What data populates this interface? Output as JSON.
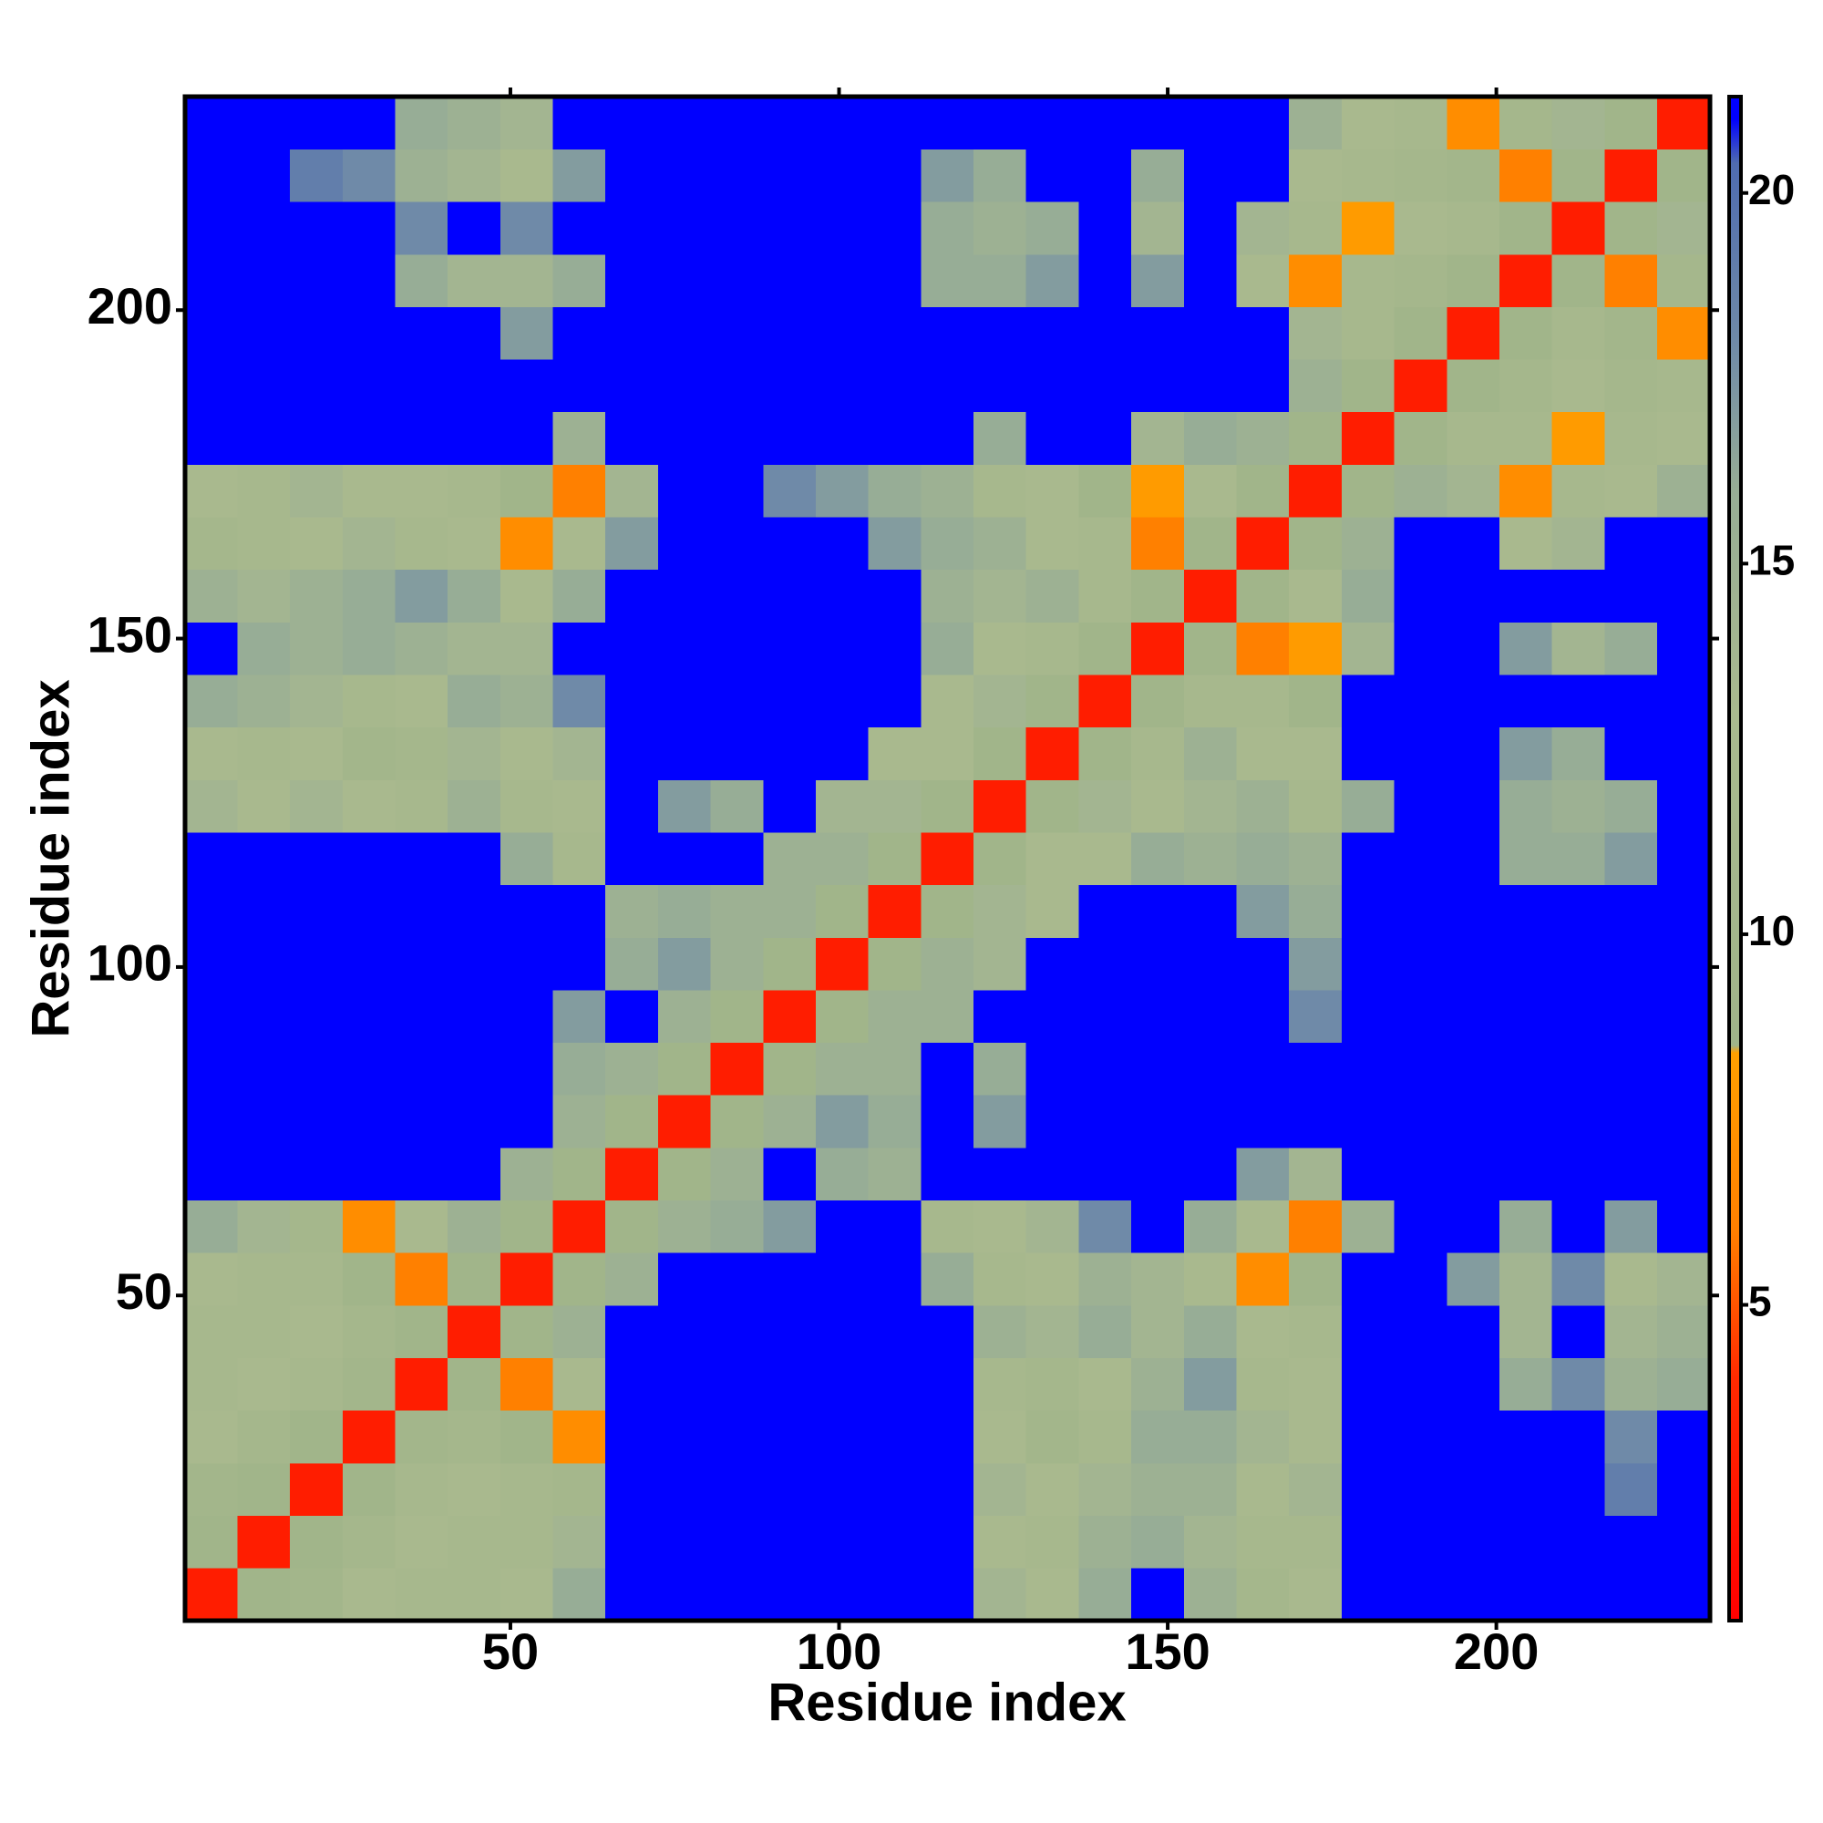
{
  "chart_data": {
    "type": "heatmap",
    "xlabel": "Residue index",
    "ylabel": "Residue index",
    "bins": [
      0.5,
      8.5,
      16.5,
      24.5,
      32.5,
      40.5,
      48.5,
      56.5,
      64.5,
      72.5,
      80.5,
      88.5,
      96.5,
      104.5,
      112.5,
      120.5,
      128.5,
      136.5,
      144.5,
      152.5,
      160.5,
      168.5,
      176.5,
      184.5,
      192.5,
      200.5,
      208.5,
      216.5,
      224.5,
      232.5
    ],
    "xlim": [
      0.5,
      232.5
    ],
    "ylim": [
      0.5,
      232.5
    ],
    "xticks": [
      50,
      100,
      150,
      200
    ],
    "yticks": [
      50,
      100,
      150,
      200
    ],
    "zlim": [
      0.74,
      21.3
    ],
    "zticks": [
      5,
      10,
      15,
      20
    ],
    "colorscale": [
      [
        0.74,
        "#ff0000"
      ],
      [
        4,
        "#ff2a00"
      ],
      [
        6,
        "#ff8000"
      ],
      [
        8.4,
        "#ffa000"
      ],
      [
        8.5,
        "#a0b48a"
      ],
      [
        13,
        "#a9b98e"
      ],
      [
        16,
        "#97ad96"
      ],
      [
        18,
        "#6f8aa8"
      ],
      [
        20.4,
        "#4f6cb0"
      ],
      [
        21,
        "#0000ff"
      ]
    ],
    "z": [
      [
        3,
        9,
        10,
        13,
        12,
        12,
        13,
        16,
        21,
        21,
        21,
        21,
        21,
        21,
        21,
        14,
        13,
        16,
        21,
        15,
        11,
        13,
        21,
        21,
        21,
        21,
        21,
        21,
        21
      ],
      [
        9,
        3,
        9,
        11,
        13,
        12,
        12,
        14,
        21,
        21,
        21,
        21,
        21,
        21,
        21,
        13,
        12,
        15,
        16,
        14,
        12,
        12,
        21,
        21,
        21,
        21,
        21,
        21,
        21
      ],
      [
        10,
        9,
        3,
        9,
        12,
        13,
        12,
        11,
        21,
        21,
        21,
        21,
        21,
        21,
        21,
        14,
        13,
        14,
        15,
        15,
        13,
        14,
        21,
        21,
        21,
        21,
        21,
        19,
        21
      ],
      [
        13,
        11,
        9,
        3,
        10,
        11,
        9,
        7,
        21,
        21,
        21,
        21,
        21,
        21,
        21,
        13,
        10,
        12,
        16,
        16,
        14,
        13,
        21,
        21,
        21,
        21,
        21,
        18,
        21
      ],
      [
        12,
        13,
        12,
        10,
        3,
        9,
        6,
        13,
        21,
        21,
        21,
        21,
        21,
        21,
        21,
        12,
        11,
        13,
        15,
        17,
        12,
        13,
        21,
        21,
        21,
        16,
        18,
        15,
        16
      ],
      [
        12,
        12,
        13,
        11,
        9,
        3,
        9,
        15,
        21,
        21,
        21,
        21,
        21,
        21,
        21,
        15,
        14,
        16,
        14,
        16,
        13,
        12,
        21,
        21,
        21,
        14,
        21,
        14,
        15
      ],
      [
        13,
        12,
        12,
        9,
        6,
        9,
        3,
        9,
        15,
        21,
        21,
        21,
        21,
        21,
        16,
        12,
        13,
        15,
        14,
        13,
        7,
        9,
        21,
        21,
        17,
        14,
        18,
        13,
        14
      ],
      [
        16,
        14,
        11,
        7,
        13,
        15,
        9,
        3,
        9,
        15,
        16,
        17,
        21,
        21,
        12,
        13,
        14,
        18,
        21,
        16,
        13,
        6,
        15,
        21,
        21,
        16,
        21,
        17,
        21
      ],
      [
        21,
        21,
        21,
        21,
        21,
        21,
        15,
        9,
        3,
        9,
        15,
        21,
        16,
        15,
        21,
        21,
        21,
        21,
        21,
        21,
        17,
        14,
        21,
        21,
        21,
        21,
        21,
        21,
        21
      ],
      [
        21,
        21,
        21,
        21,
        21,
        21,
        21,
        15,
        9,
        3,
        9,
        15,
        17,
        16,
        21,
        17,
        21,
        21,
        21,
        21,
        21,
        21,
        21,
        21,
        21,
        21,
        21,
        21,
        21
      ],
      [
        21,
        21,
        21,
        21,
        21,
        21,
        21,
        16,
        15,
        9,
        3,
        9,
        15,
        15,
        21,
        16,
        21,
        21,
        21,
        21,
        21,
        21,
        21,
        21,
        21,
        21,
        21,
        21,
        21
      ],
      [
        21,
        21,
        21,
        21,
        21,
        21,
        21,
        17,
        21,
        15,
        9,
        3,
        9,
        15,
        15,
        21,
        21,
        21,
        21,
        21,
        21,
        18,
        21,
        21,
        21,
        21,
        21,
        21,
        21
      ],
      [
        21,
        21,
        21,
        21,
        21,
        21,
        21,
        21,
        16,
        17,
        15,
        9,
        3,
        9,
        15,
        14,
        21,
        21,
        21,
        21,
        21,
        17,
        21,
        21,
        21,
        21,
        21,
        21,
        21
      ],
      [
        21,
        21,
        21,
        21,
        21,
        21,
        21,
        21,
        15,
        16,
        15,
        15,
        9,
        3,
        9,
        14,
        13,
        21,
        21,
        21,
        17,
        16,
        21,
        21,
        21,
        21,
        21,
        21,
        21
      ],
      [
        21,
        21,
        21,
        21,
        21,
        21,
        16,
        12,
        21,
        21,
        21,
        15,
        15,
        9,
        3,
        9,
        13,
        13,
        16,
        15,
        16,
        15,
        21,
        21,
        21,
        16,
        16,
        17,
        21
      ],
      [
        14,
        13,
        14,
        13,
        12,
        15,
        12,
        13,
        21,
        17,
        16,
        21,
        14,
        14,
        9,
        3,
        9,
        14,
        13,
        14,
        15,
        12,
        16,
        21,
        21,
        16,
        15,
        16,
        21
      ],
      [
        13,
        12,
        13,
        10,
        11,
        14,
        13,
        14,
        21,
        21,
        21,
        21,
        21,
        13,
        13,
        9,
        3,
        9,
        12,
        15,
        13,
        13,
        21,
        21,
        21,
        17,
        16,
        21,
        21
      ],
      [
        16,
        15,
        14,
        12,
        13,
        16,
        15,
        18,
        21,
        21,
        21,
        21,
        21,
        21,
        13,
        14,
        9,
        3,
        9,
        12,
        12,
        9,
        21,
        21,
        21,
        21,
        21,
        21,
        21
      ],
      [
        21,
        16,
        15,
        16,
        15,
        14,
        14,
        21,
        21,
        21,
        21,
        21,
        21,
        21,
        16,
        13,
        12,
        9,
        3,
        9,
        6,
        8,
        14,
        21,
        21,
        17,
        14,
        16,
        21
      ],
      [
        15,
        14,
        15,
        16,
        17,
        16,
        13,
        16,
        21,
        21,
        21,
        21,
        21,
        21,
        15,
        14,
        15,
        12,
        9,
        3,
        9,
        13,
        16,
        21,
        21,
        21,
        21,
        21,
        21
      ],
      [
        11,
        12,
        13,
        14,
        12,
        13,
        7,
        13,
        17,
        21,
        21,
        21,
        21,
        17,
        16,
        15,
        13,
        12,
        6,
        9,
        3,
        9,
        15,
        21,
        21,
        13,
        14,
        21,
        21
      ],
      [
        13,
        12,
        14,
        13,
        13,
        12,
        9,
        6,
        14,
        21,
        21,
        18,
        17,
        16,
        15,
        12,
        13,
        9,
        8,
        13,
        9,
        3,
        9,
        15,
        14,
        7,
        12,
        13,
        15
      ],
      [
        21,
        21,
        21,
        21,
        21,
        21,
        21,
        15,
        21,
        21,
        21,
        21,
        21,
        21,
        21,
        16,
        21,
        21,
        14,
        16,
        15,
        9,
        3,
        9,
        12,
        12,
        8,
        12,
        13
      ],
      [
        21,
        21,
        21,
        21,
        21,
        21,
        21,
        21,
        21,
        21,
        21,
        21,
        21,
        21,
        21,
        21,
        21,
        21,
        21,
        21,
        21,
        15,
        9,
        3,
        9,
        11,
        13,
        11,
        12
      ],
      [
        21,
        21,
        21,
        21,
        21,
        21,
        17,
        21,
        21,
        21,
        21,
        21,
        21,
        21,
        21,
        21,
        21,
        21,
        21,
        21,
        21,
        14,
        12,
        9,
        3,
        9,
        12,
        10,
        7
      ],
      [
        21,
        21,
        21,
        21,
        16,
        14,
        14,
        16,
        21,
        21,
        21,
        21,
        21,
        21,
        16,
        16,
        17,
        21,
        17,
        21,
        13,
        7,
        12,
        11,
        9,
        3,
        9,
        6,
        11
      ],
      [
        21,
        21,
        21,
        21,
        18,
        21,
        18,
        21,
        21,
        21,
        21,
        21,
        21,
        21,
        16,
        15,
        16,
        21,
        14,
        21,
        14,
        12,
        8,
        13,
        12,
        9,
        3,
        9,
        14
      ],
      [
        21,
        21,
        19,
        18,
        15,
        14,
        13,
        17,
        21,
        21,
        21,
        21,
        21,
        21,
        17,
        16,
        21,
        21,
        16,
        21,
        21,
        13,
        12,
        11,
        10,
        6,
        9,
        3,
        9
      ],
      [
        21,
        21,
        21,
        21,
        16,
        15,
        14,
        21,
        21,
        21,
        21,
        21,
        21,
        21,
        21,
        21,
        21,
        21,
        21,
        21,
        21,
        15,
        13,
        12,
        7,
        11,
        14,
        9,
        3
      ]
    ]
  }
}
